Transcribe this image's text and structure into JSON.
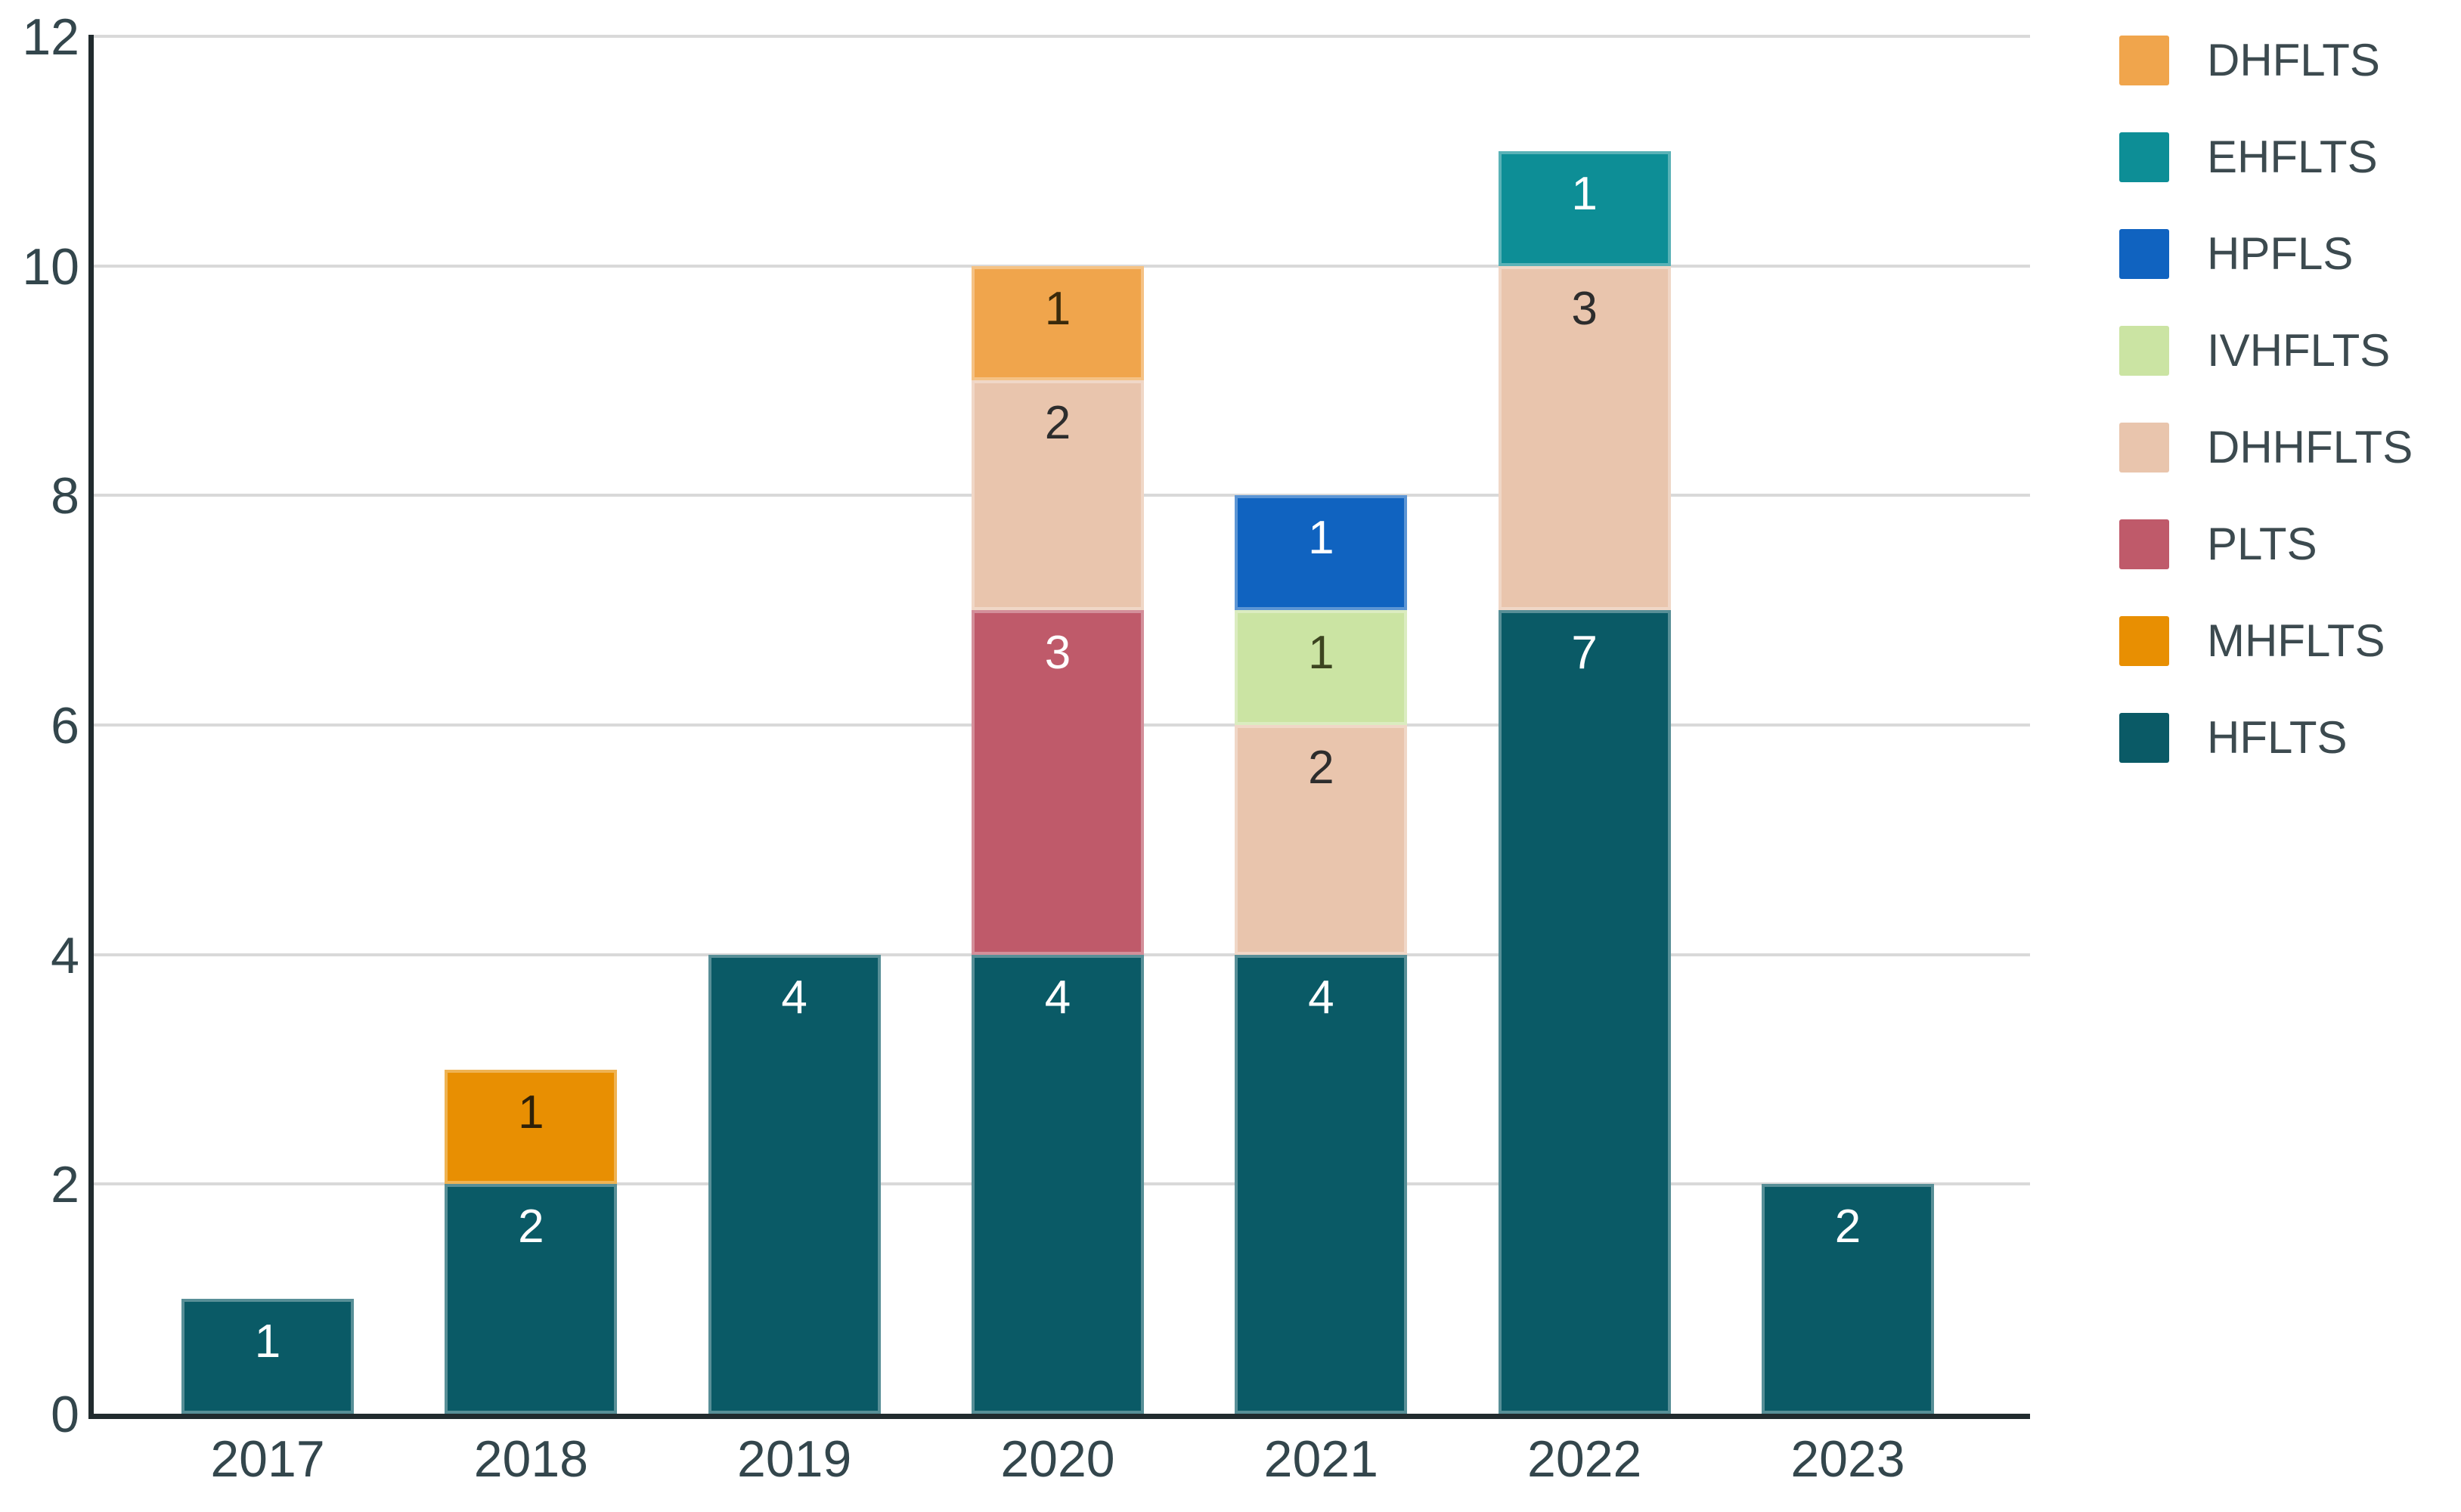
{
  "chart_data": {
    "type": "bar",
    "stacked": true,
    "title": "",
    "xlabel": "",
    "ylabel": "",
    "categories": [
      "2017",
      "2018",
      "2019",
      "2020",
      "2021",
      "2022",
      "2023"
    ],
    "series": [
      {
        "name": "HFLTS",
        "color": "#0A5A66",
        "label_color": "#FFFFFF",
        "values": [
          1,
          2,
          4,
          4,
          4,
          7,
          2
        ]
      },
      {
        "name": "MHFLTS",
        "color": "#E88F02",
        "label_color": "#2E2008",
        "values": [
          0,
          1,
          0,
          0,
          0,
          0,
          0
        ]
      },
      {
        "name": "PLTS",
        "color": "#BF5A6A",
        "label_color": "#FFFFFF",
        "values": [
          0,
          0,
          0,
          3,
          0,
          0,
          0
        ]
      },
      {
        "name": "DHHFLTS",
        "color": "#E9C5AD",
        "label_color": "#2D2D2D",
        "values": [
          0,
          0,
          0,
          2,
          2,
          3,
          0
        ]
      },
      {
        "name": "IVHFLTS",
        "color": "#CBE4A3",
        "label_color": "#3C4420",
        "values": [
          0,
          0,
          0,
          0,
          1,
          0,
          0
        ]
      },
      {
        "name": "HPFLS",
        "color": "#1063C0",
        "label_color": "#FFFFFF",
        "values": [
          0,
          0,
          0,
          0,
          1,
          0,
          0
        ]
      },
      {
        "name": "EHFLTS",
        "color": "#0D8E96",
        "label_color": "#FFFFFF",
        "values": [
          0,
          0,
          0,
          0,
          0,
          1,
          0
        ]
      },
      {
        "name": "DHFLTS",
        "color": "#F0A54C",
        "label_color": "#3A2A0B",
        "values": [
          0,
          0,
          0,
          1,
          0,
          0,
          0
        ]
      }
    ],
    "legend": [
      "DHFLTS",
      "EHFLTS",
      "HPFLS",
      "IVHFLTS",
      "DHHFLTS",
      "PLTS",
      "MHFLTS",
      "HFLTS"
    ],
    "legend_position": "right",
    "y_ticks": [
      0,
      2,
      4,
      6,
      8,
      10,
      12
    ],
    "ylim": [
      0,
      12
    ],
    "grid": true
  },
  "style_colors": {
    "background": "#FFFFFF",
    "gridline": "#D9D9D9",
    "axis_line": "#212B2E",
    "tick_label": "#33464C",
    "legend_label": "#3C4A4F"
  }
}
